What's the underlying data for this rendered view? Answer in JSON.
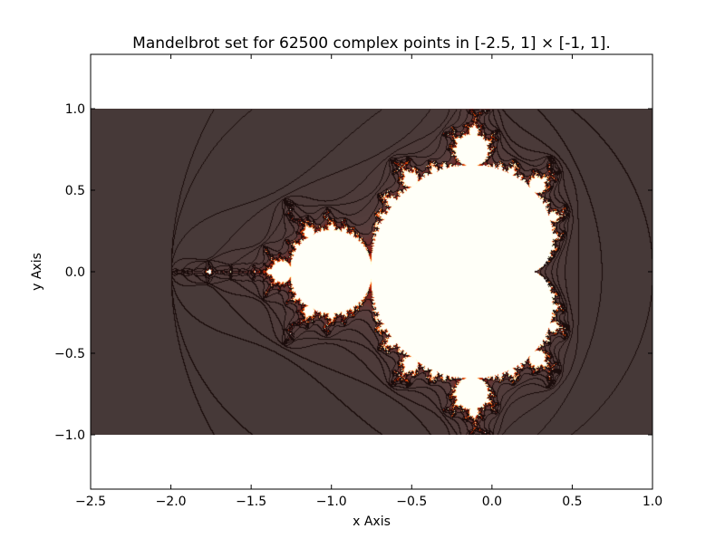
{
  "chart_data": {
    "type": "heatmap",
    "title": "Mandelbrot set for 62500 complex points in [-2.5, 1] × [-1, 1].",
    "xlabel": "x Axis",
    "ylabel": "y Axis",
    "xlim": [
      -2.5,
      1.0
    ],
    "ylim": [
      -1.3333,
      1.3333
    ],
    "data_extent": {
      "x": [
        -2.5,
        1.0
      ],
      "y": [
        -1.0,
        1.0
      ]
    },
    "grid_points": 62500,
    "grid_shape": [
      250,
      250
    ],
    "max_iterations": 100,
    "colormap": "hot",
    "overlay": "contour lines of escape iteration count",
    "xticks": [
      -2.5,
      -2.0,
      -1.5,
      -1.0,
      -0.5,
      0.0,
      0.5,
      1.0
    ],
    "xtick_labels": [
      "−2.5",
      "−2.0",
      "−1.5",
      "−1.0",
      "−0.5",
      "0.0",
      "0.5",
      "1.0"
    ],
    "yticks": [
      -1.0,
      -0.5,
      0.0,
      0.5,
      1.0
    ],
    "ytick_labels": [
      "−1.0",
      "−0.5",
      "0.0",
      "0.5",
      "1.0"
    ],
    "grid": false,
    "legend": "none"
  },
  "colors": {
    "background_far": "#463938",
    "background_near": "#573f3d",
    "set_interior": "#fffff8",
    "boundary_hot": "#ff5a00",
    "boundary_dark": "#7a1008",
    "contour": "#1a0c0b",
    "axes": "#000000"
  }
}
